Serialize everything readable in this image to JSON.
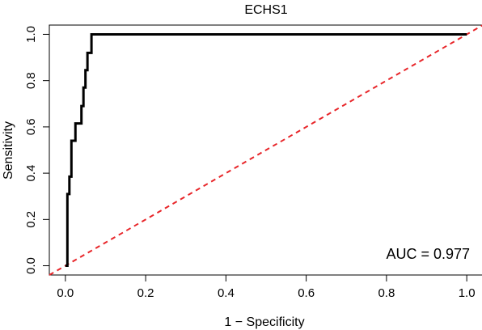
{
  "chart_data": {
    "type": "line",
    "title": "ECHS1",
    "xlabel": "1 − Specificity",
    "ylabel": "Sensitivity",
    "xlim": [
      -0.04,
      1.04
    ],
    "ylim": [
      -0.04,
      1.04
    ],
    "x_ticks": [
      0.0,
      0.2,
      0.4,
      0.6,
      0.8,
      1.0
    ],
    "x_tick_labels": [
      "0.0",
      "0.2",
      "0.4",
      "0.6",
      "0.8",
      "1.0"
    ],
    "y_ticks": [
      0.0,
      0.2,
      0.4,
      0.6,
      0.8,
      1.0
    ],
    "y_tick_labels": [
      "0.0",
      "0.2",
      "0.4",
      "0.6",
      "0.8",
      "1.0"
    ],
    "grid": false,
    "series": [
      {
        "style": "step",
        "color": "#000000",
        "points": [
          [
            0.0,
            0.0
          ],
          [
            0.005,
            0.0
          ],
          [
            0.005,
            0.31
          ],
          [
            0.01,
            0.31
          ],
          [
            0.01,
            0.385
          ],
          [
            0.015,
            0.385
          ],
          [
            0.015,
            0.54
          ],
          [
            0.025,
            0.54
          ],
          [
            0.025,
            0.615
          ],
          [
            0.04,
            0.615
          ],
          [
            0.04,
            0.69
          ],
          [
            0.045,
            0.69
          ],
          [
            0.045,
            0.77
          ],
          [
            0.05,
            0.77
          ],
          [
            0.05,
            0.845
          ],
          [
            0.055,
            0.845
          ],
          [
            0.055,
            0.92
          ],
          [
            0.065,
            0.92
          ],
          [
            0.065,
            1.0
          ],
          [
            1.0,
            1.0
          ]
        ]
      },
      {
        "style": "dashed-reference",
        "color": "#e8262a",
        "points": [
          [
            -0.04,
            -0.04
          ],
          [
            1.04,
            1.04
          ]
        ]
      }
    ],
    "annotations": [
      {
        "text": "AUC = 0.977",
        "x": 0.99,
        "y": 0.05,
        "anchor": "end"
      }
    ]
  }
}
